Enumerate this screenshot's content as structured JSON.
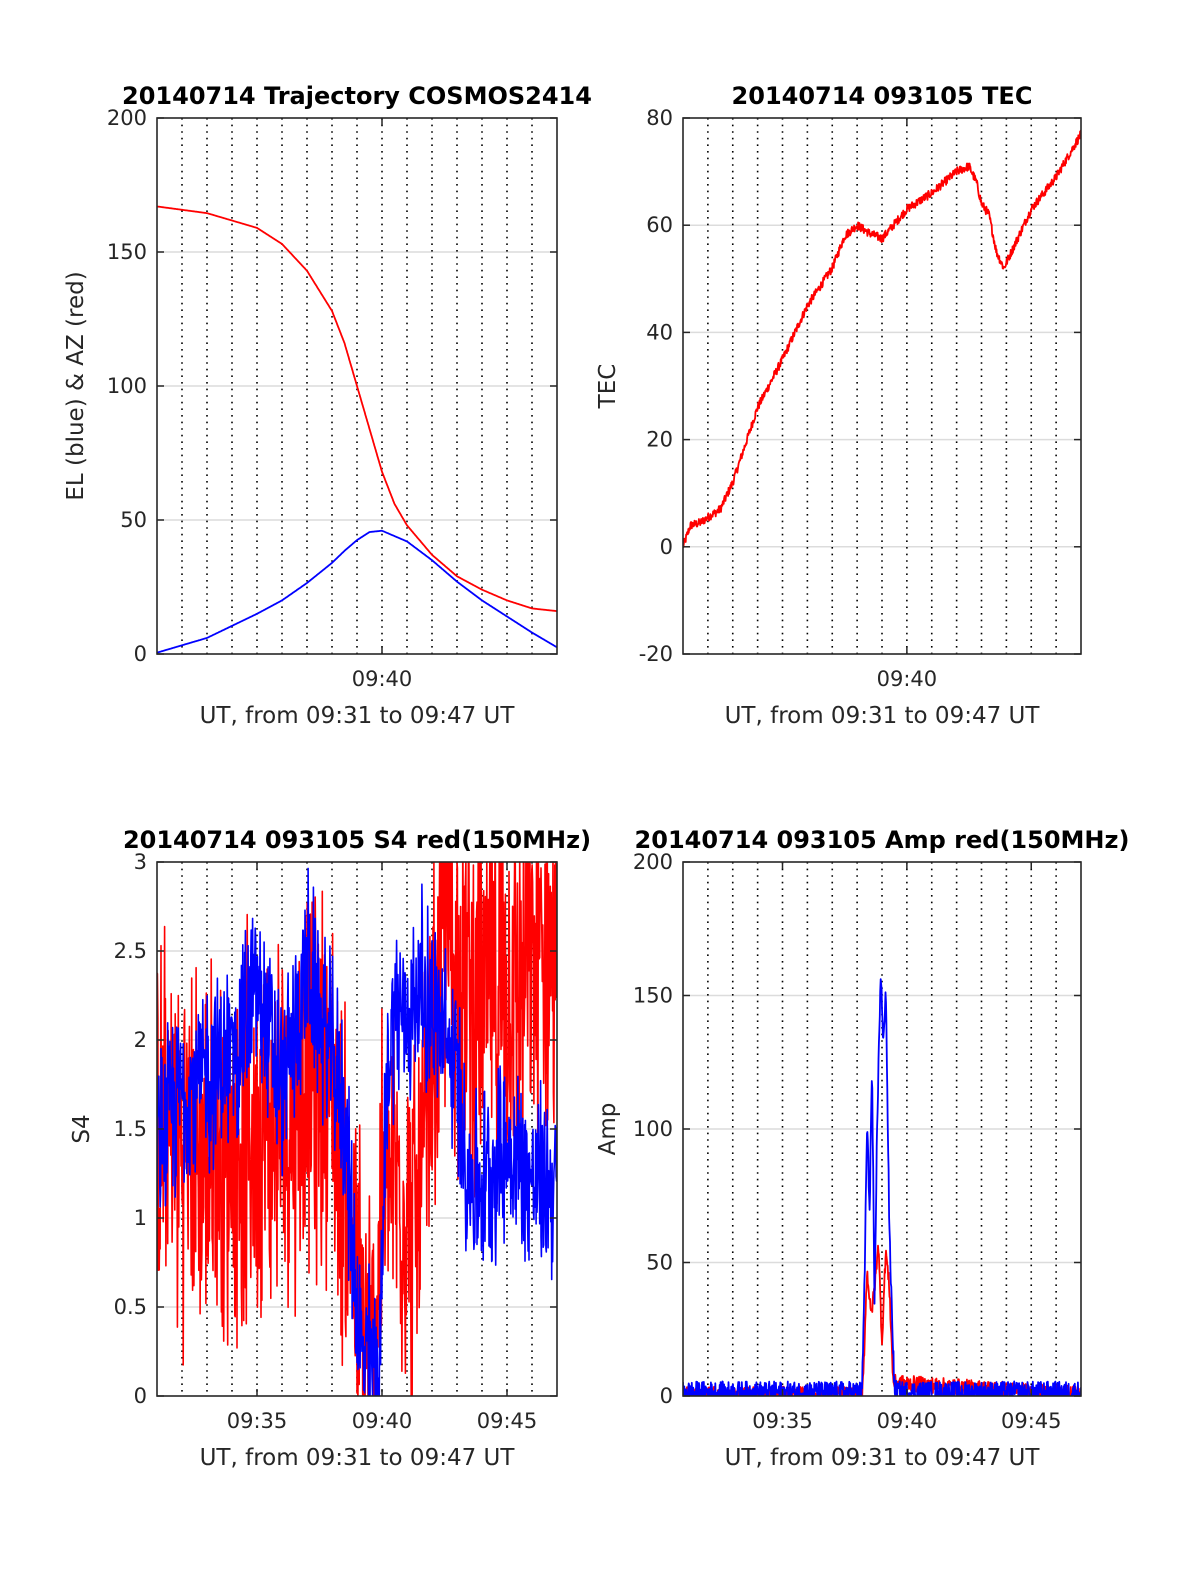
{
  "colors": {
    "red": "#ff0000",
    "blue": "#0000ff",
    "grid": "#dcdcdc",
    "axis": "#262626"
  },
  "chart_data": [
    {
      "id": "trajectory",
      "type": "line",
      "title": "20140714 Trajectory COSMOS2414",
      "xlabel": "UT, from 09:31 to 09:47 UT",
      "ylabel": "EL (blue) & AZ (red)",
      "xlim": [
        0,
        16
      ],
      "ylim": [
        0,
        200
      ],
      "yticks": [
        0,
        50,
        100,
        150,
        200
      ],
      "xticks": [
        {
          "x": 9,
          "label": "09:40"
        }
      ],
      "series": [
        {
          "color": "red",
          "noise": 0,
          "x": [
            0,
            2,
            4,
            5,
            6,
            7,
            7.5,
            8,
            8.5,
            9,
            9.5,
            10,
            11,
            12,
            13,
            14,
            15,
            16
          ],
          "y": [
            167,
            164.5,
            159,
            153,
            143,
            128,
            116,
            100,
            84,
            68,
            56,
            48,
            37,
            29,
            24,
            20,
            17,
            16
          ]
        },
        {
          "color": "blue",
          "noise": 0,
          "x": [
            0,
            2,
            4,
            5,
            6,
            7,
            7.5,
            8,
            8.5,
            9,
            10,
            11,
            12,
            13,
            14,
            15,
            16
          ],
          "y": [
            0.5,
            6,
            15,
            20,
            26.5,
            34,
            38.5,
            42.5,
            45.5,
            46,
            42,
            35,
            27,
            20,
            14,
            8,
            2.5
          ]
        }
      ]
    },
    {
      "id": "tec",
      "type": "line",
      "title": "20140714 093105 TEC",
      "xlabel": "UT, from 09:31 to 09:47 UT",
      "ylabel": "TEC",
      "xlim": [
        0,
        16
      ],
      "ylim": [
        -20,
        80
      ],
      "yticks": [
        -20,
        0,
        20,
        40,
        60,
        80
      ],
      "xticks": [
        {
          "x": 9,
          "label": "09:40"
        }
      ],
      "series": [
        {
          "color": "red",
          "noise": 0.8,
          "x": [
            0,
            0.3,
            0.7,
            1,
            1.5,
            2,
            3,
            4,
            5,
            6,
            6.5,
            7,
            7.5,
            8,
            9,
            10,
            10.5,
            11,
            11.5,
            11.8,
            12,
            12.3,
            12.6,
            12.9,
            13.2,
            13.5,
            14,
            15,
            16
          ],
          "y": [
            0,
            4,
            4.5,
            5.5,
            7,
            12,
            26,
            35,
            45,
            52,
            58,
            60,
            58.5,
            57.5,
            63,
            66,
            68,
            70,
            71,
            68,
            64,
            62,
            55,
            52,
            55,
            58,
            63,
            69,
            77
          ]
        }
      ]
    },
    {
      "id": "s4",
      "type": "line",
      "title": "20140714 093105 S4 red(150MHz)",
      "xlabel": "UT, from 09:31 to 09:47 UT",
      "ylabel": "S4",
      "xlim": [
        0,
        16
      ],
      "ylim": [
        0,
        3
      ],
      "yticks": [
        0,
        0.5,
        1,
        1.5,
        2,
        2.5,
        3
      ],
      "xticks": [
        {
          "x": 4,
          "label": "09:35"
        },
        {
          "x": 9,
          "label": "09:40"
        },
        {
          "x": 14,
          "label": "09:45"
        }
      ],
      "series": [
        {
          "color": "red",
          "noise": 0.8,
          "x": [
            0,
            2,
            4,
            5,
            6,
            7,
            7.5,
            8,
            8.3,
            8.6,
            9,
            9.5,
            10,
            10.5,
            11,
            11.5,
            12,
            13,
            14,
            15,
            16
          ],
          "y": [
            1.5,
            1.3,
            1.5,
            1.5,
            1.8,
            1.8,
            1.2,
            0.6,
            0.2,
            0.2,
            1,
            1.3,
            1,
            1,
            1.8,
            2.6,
            2.4,
            2.2,
            2.3,
            2.4,
            2.5
          ]
        },
        {
          "color": "blue",
          "noise": 0.4,
          "x": [
            0,
            1,
            2,
            3,
            4,
            5,
            6,
            7,
            7.5,
            7.8,
            8.2,
            8.6,
            8.9,
            9.2,
            9.5,
            10,
            10.5,
            11,
            12,
            12.5,
            13,
            14,
            15,
            16
          ],
          "y": [
            1.4,
            1.7,
            1.8,
            1.9,
            2.3,
            1.7,
            2.4,
            1.9,
            1.6,
            0.9,
            0.2,
            0.2,
            0.15,
            1.8,
            2.2,
            2.1,
            2.3,
            2.2,
            1.8,
            1.2,
            1.2,
            1.4,
            1.2,
            1.2
          ]
        }
      ]
    },
    {
      "id": "amp",
      "type": "line",
      "title": "20140714 093105 Amp red(150MHz)",
      "xlabel": "UT, from 09:31 to 09:47 UT",
      "ylabel": "Amp",
      "xlim": [
        0,
        16
      ],
      "ylim": [
        0,
        200
      ],
      "yticks": [
        0,
        50,
        100,
        150,
        200
      ],
      "xticks": [
        {
          "x": 4,
          "label": "09:35"
        },
        {
          "x": 9,
          "label": "09:40"
        },
        {
          "x": 14,
          "label": "09:45"
        }
      ],
      "series": [
        {
          "color": "red",
          "noise": 3,
          "x": [
            0,
            7.2,
            7.3,
            7.4,
            7.55,
            7.7,
            7.85,
            8.0,
            8.15,
            8.3,
            8.45,
            16
          ],
          "y": [
            0.5,
            0.5,
            20,
            48,
            30,
            40,
            58,
            20,
            55,
            40,
            5,
            0.5
          ]
        },
        {
          "color": "blue",
          "noise": 4,
          "x": [
            0,
            7.2,
            7.3,
            7.4,
            7.5,
            7.6,
            7.7,
            7.8,
            7.95,
            8.05,
            8.15,
            8.3,
            8.5,
            8.6,
            16
          ],
          "y": [
            1.5,
            1.5,
            45,
            102,
            70,
            123,
            30,
            100,
            160,
            130,
            155,
            60,
            3,
            1.5,
            1.5
          ]
        }
      ]
    }
  ]
}
